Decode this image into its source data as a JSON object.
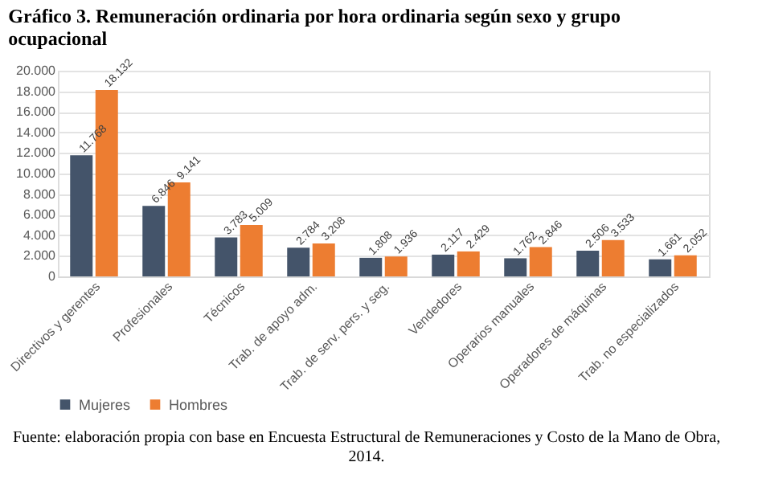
{
  "chart_data": {
    "type": "bar",
    "title": [
      "Gráfico 3. Remuneración ordinaria por hora ordinaria según sexo y grupo",
      "ocupacional"
    ],
    "categories": [
      "Directivos y gerentes",
      "Profesionales",
      "Técnicos",
      "Trab. de apoyo adm.",
      "Trab. de serv. pers. y seg.",
      "Vendedores",
      "Operarios manuales",
      "Operadores de máquinas",
      "Trab. no especializados"
    ],
    "series": [
      {
        "name": "Mujeres",
        "color": "#44546a",
        "values": [
          11768,
          6846,
          3783,
          2784,
          1808,
          2117,
          1762,
          2506,
          1661
        ],
        "value_labels": [
          "11.768",
          "6.846",
          "3.783",
          "2.784",
          "1.808",
          "2.117",
          "1.762",
          "2.506",
          "1.661"
        ]
      },
      {
        "name": "Hombres",
        "color": "#ed7d31",
        "values": [
          18132,
          9141,
          5009,
          3208,
          1936,
          2429,
          2846,
          3533,
          2052
        ],
        "value_labels": [
          "18.132",
          "9.141",
          "5.009",
          "3.208",
          "1.936",
          "2.429",
          "2.846",
          "3.533",
          "2.052"
        ]
      }
    ],
    "ylim": [
      0,
      20000
    ],
    "yticks": [
      {
        "value": 0,
        "label": "0"
      },
      {
        "value": 2000,
        "label": "2.000"
      },
      {
        "value": 4000,
        "label": "4.000"
      },
      {
        "value": 6000,
        "label": "6.000"
      },
      {
        "value": 8000,
        "label": "8.000"
      },
      {
        "value": 10000,
        "label": "10.000"
      },
      {
        "value": 12000,
        "label": "12.000"
      },
      {
        "value": 14000,
        "label": "14.000"
      },
      {
        "value": 16000,
        "label": "16.000"
      },
      {
        "value": 18000,
        "label": "18.000"
      },
      {
        "value": 20000,
        "label": "20.000"
      }
    ],
    "grid": "y",
    "legend": "bottom",
    "annotations": [
      "Fuente: elaboración propia con base en Encuesta Estructural de Remuneraciones y Costo de la Mano de Obra,",
      "2014."
    ]
  }
}
